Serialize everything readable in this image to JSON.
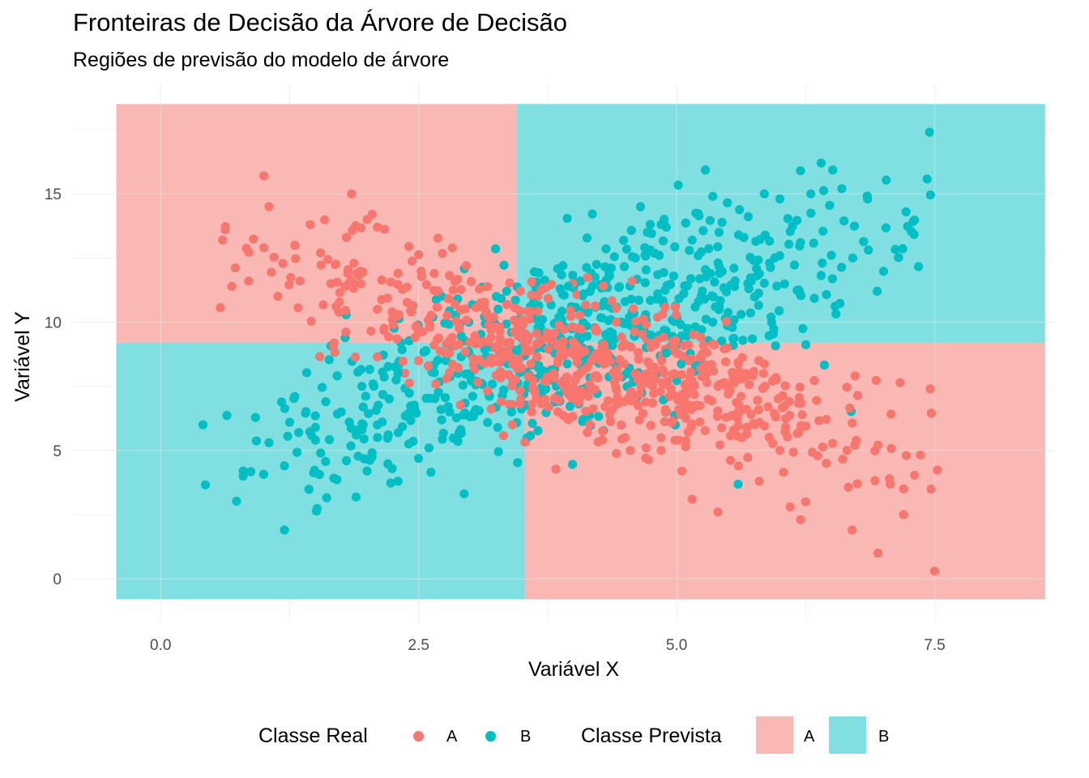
{
  "chart_data": {
    "type": "scatter",
    "title": "Fronteiras de Decisão da Árvore de Decisão",
    "subtitle": "Regiões de previsão do modelo de árvore",
    "xlabel": "Variável X",
    "ylabel": "Variável Y",
    "xlim": [
      -0.85,
      8.65
    ],
    "ylim": [
      -1.7,
      19.3
    ],
    "x_ticks": [
      0.0,
      2.5,
      5.0,
      7.5
    ],
    "x_tick_labels": [
      "0.0",
      "2.5",
      "5.0",
      "7.5"
    ],
    "y_ticks": [
      0,
      5,
      10,
      15
    ],
    "y_tick_labels": [
      "0",
      "5",
      "10",
      "15"
    ],
    "grid": true,
    "legend_position": "bottom",
    "legends": {
      "real": {
        "title": "Classe Real",
        "items": [
          "A",
          "B"
        ]
      },
      "predicted": {
        "title": "Classe Prevista",
        "items": [
          "A",
          "B"
        ]
      }
    },
    "colors": {
      "A": "#F8766D",
      "B": "#00BFC4",
      "region_A": "#F9B8B4",
      "region_B": "#7FDFE1"
    },
    "regions": [
      {
        "class": "A",
        "x": [
          -0.43,
          3.45
        ],
        "y": [
          9.2,
          18.5
        ]
      },
      {
        "class": "B",
        "x": [
          3.45,
          8.57
        ],
        "y": [
          9.2,
          18.5
        ]
      },
      {
        "class": "B",
        "x": [
          -0.43,
          3.53
        ],
        "y": [
          -0.8,
          9.2
        ]
      },
      {
        "class": "A",
        "x": [
          3.53,
          8.57
        ],
        "y": [
          -0.8,
          9.2
        ]
      }
    ],
    "series": [
      {
        "name": "A",
        "description_points": [
          [
            0.6,
            13.2
          ],
          [
            1.0,
            15.7
          ],
          [
            1.05,
            14.5
          ],
          [
            1.0,
            12.9
          ],
          [
            1.3,
            13.0
          ],
          [
            1.35,
            11.6
          ],
          [
            1.45,
            13.8
          ],
          [
            1.55,
            12.7
          ],
          [
            1.65,
            11.5
          ],
          [
            1.7,
            10.6
          ],
          [
            1.8,
            13.3
          ],
          [
            1.85,
            15.0
          ],
          [
            1.9,
            11.9
          ],
          [
            2.0,
            14.0
          ],
          [
            2.05,
            14.2
          ],
          [
            2.1,
            13.7
          ],
          [
            2.1,
            10.5
          ],
          [
            2.3,
            11.9
          ],
          [
            2.5,
            9.6
          ],
          [
            2.5,
            8.5
          ],
          [
            2.65,
            9.1
          ],
          [
            2.8,
            8.8
          ],
          [
            3.2,
            9.4
          ],
          [
            3.3,
            6.9
          ],
          [
            3.6,
            6.8
          ],
          [
            3.85,
            6.5
          ],
          [
            3.95,
            6.2
          ],
          [
            4.35,
            6.4
          ],
          [
            4.5,
            5.5
          ],
          [
            4.55,
            5.0
          ],
          [
            4.7,
            4.7
          ],
          [
            4.85,
            5.0
          ],
          [
            5.05,
            4.2
          ],
          [
            5.15,
            3.1
          ],
          [
            5.4,
            2.6
          ],
          [
            5.6,
            4.4
          ],
          [
            5.8,
            3.8
          ],
          [
            6.0,
            5.0
          ],
          [
            6.1,
            2.8
          ],
          [
            6.2,
            2.3
          ],
          [
            6.25,
            3.0
          ],
          [
            6.45,
            4.5
          ],
          [
            6.65,
            5.0
          ],
          [
            6.75,
            3.7
          ],
          [
            6.7,
            1.9
          ],
          [
            6.95,
            1.0
          ],
          [
            7.2,
            3.5
          ],
          [
            7.2,
            2.5
          ],
          [
            7.5,
            0.3
          ],
          [
            5.4,
            7.5
          ],
          [
            5.5,
            7.2
          ],
          [
            5.1,
            6.8
          ],
          [
            4.9,
            6.5
          ],
          [
            4.6,
            7.1
          ]
        ]
      },
      {
        "name": "B",
        "description_points": [
          [
            0.8,
            4.0
          ],
          [
            0.8,
            4.2
          ],
          [
            1.2,
            1.9
          ],
          [
            1.2,
            4.4
          ],
          [
            1.25,
            6.1
          ],
          [
            1.05,
            5.3
          ],
          [
            1.3,
            7.1
          ],
          [
            1.5,
            5.9
          ],
          [
            1.5,
            5.4
          ],
          [
            1.55,
            4.9
          ],
          [
            1.6,
            6.9
          ],
          [
            1.75,
            6.5
          ],
          [
            1.8,
            4.6
          ],
          [
            1.95,
            7.5
          ],
          [
            2.0,
            4.2
          ],
          [
            2.1,
            6.0
          ],
          [
            2.3,
            3.8
          ],
          [
            2.3,
            8.0
          ],
          [
            2.6,
            5.1
          ],
          [
            2.8,
            6.5
          ],
          [
            3.0,
            7.9
          ],
          [
            3.4,
            6.5
          ],
          [
            3.45,
            8.9
          ],
          [
            3.7,
            10.1
          ],
          [
            3.95,
            11.4
          ],
          [
            4.1,
            11.1
          ],
          [
            4.35,
            11.8
          ],
          [
            4.6,
            12.5
          ],
          [
            4.65,
            14.5
          ],
          [
            4.9,
            13.7
          ],
          [
            5.15,
            13.2
          ],
          [
            5.35,
            14.9
          ],
          [
            5.6,
            13.4
          ],
          [
            5.85,
            15.0
          ],
          [
            6.0,
            14.8
          ],
          [
            6.2,
            15.9
          ],
          [
            6.3,
            15.0
          ],
          [
            6.4,
            16.2
          ],
          [
            6.6,
            15.2
          ],
          [
            6.85,
            14.8
          ],
          [
            7.45,
            17.4
          ],
          [
            4.9,
            8.8
          ],
          [
            4.75,
            9.5
          ],
          [
            4.5,
            10.8
          ],
          [
            5.35,
            10.0
          ],
          [
            5.7,
            11.3
          ],
          [
            5.9,
            12.3
          ],
          [
            6.2,
            13.1
          ]
        ]
      }
    ]
  }
}
